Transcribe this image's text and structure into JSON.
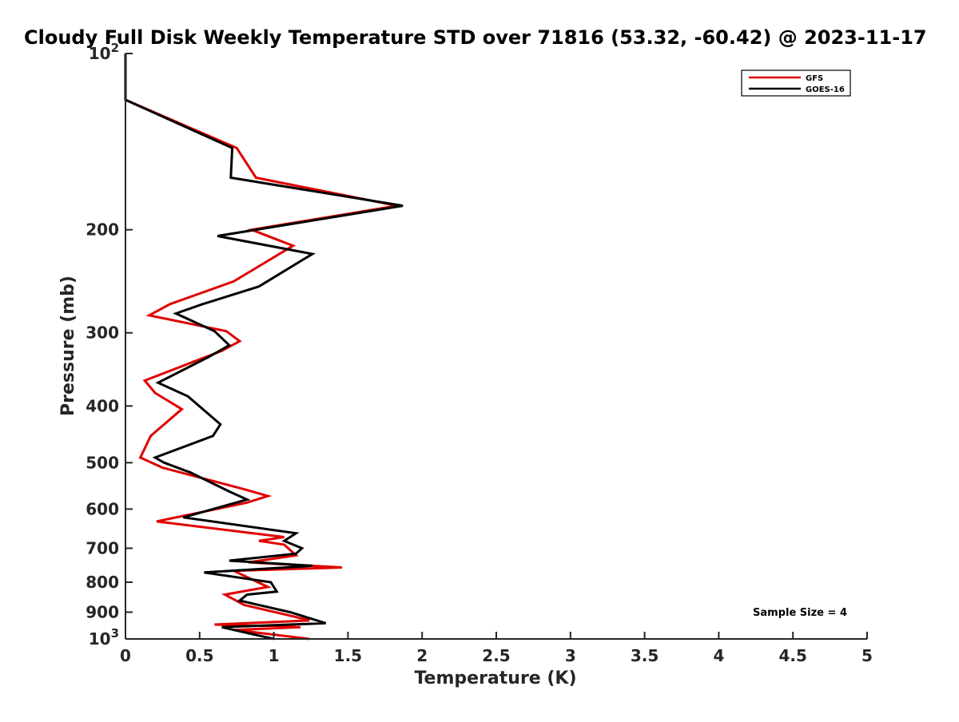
{
  "chart_data": {
    "type": "line",
    "title": "Cloudy Full Disk Weekly Temperature STD over 71816 (53.32, -60.42) @ 2023-11-17",
    "xlabel": "Temperature (K)",
    "ylabel": "Pressure (mb)",
    "xlim": [
      0,
      5
    ],
    "ylim": [
      1000,
      100
    ],
    "yscale": "log",
    "y_reversed": true,
    "grid": false,
    "legend_position": "top-right",
    "x_ticks": [
      0,
      0.5,
      1,
      1.5,
      2,
      2.5,
      3,
      3.5,
      4,
      4.5,
      5
    ],
    "x_tick_labels": [
      "0",
      "0.5",
      "1",
      "1.5",
      "2",
      "2.5",
      "3",
      "3.5",
      "4",
      "4.5",
      "5"
    ],
    "y_ticks": [
      100,
      200,
      300,
      400,
      500,
      600,
      700,
      800,
      900,
      1000
    ],
    "y_tick_labels": [
      "10^2",
      "200",
      "300",
      "400",
      "500",
      "600",
      "700",
      "800",
      "900",
      "10^3"
    ],
    "annotation": "Sample Size = 4",
    "series": [
      {
        "name": "GFS",
        "color": "#e00000",
        "x": [
          0,
          0,
          0,
          0.75,
          0.88,
          1.83,
          0.85,
          1.13,
          0.73,
          0.3,
          0.16,
          0.68,
          0.77,
          0.65,
          0.13,
          0.2,
          0.38,
          0.17,
          0.1,
          0.25,
          0.8,
          0.96,
          0.82,
          0.21,
          1.07,
          0.9,
          1.07,
          1.15,
          0.83,
          1.46,
          0.73,
          0.96,
          0.67,
          0.8,
          1.13,
          1.24,
          0.6,
          1.18,
          0.74,
          1.24
        ],
        "y": [
          100,
          110,
          120,
          145,
          163,
          182,
          200,
          213,
          245,
          268,
          280,
          298,
          310,
          322,
          362,
          380,
          405,
          450,
          490,
          510,
          555,
          570,
          585,
          630,
          670,
          680,
          690,
          720,
          740,
          755,
          765,
          815,
          840,
          875,
          915,
          930,
          945,
          955,
          965,
          1000
        ]
      },
      {
        "name": "GOES-16",
        "color": "#000000",
        "x": [
          0,
          0,
          0,
          0.72,
          0.71,
          1.87,
          0.62,
          1.26,
          0.9,
          0.52,
          0.34,
          0.6,
          0.7,
          0.56,
          0.22,
          0.42,
          0.64,
          0.59,
          0.2,
          0.26,
          0.44,
          0.7,
          0.82,
          0.39,
          1.15,
          1.07,
          1.19,
          1.15,
          0.7,
          1.26,
          0.53,
          0.98,
          1.02,
          0.82,
          0.77,
          1.11,
          1.35,
          0.65,
          1.0
        ],
        "y": [
          100,
          110,
          120,
          145,
          163,
          182,
          205,
          220,
          250,
          268,
          278,
          298,
          315,
          330,
          365,
          385,
          430,
          450,
          490,
          500,
          520,
          560,
          578,
          620,
          660,
          680,
          700,
          715,
          735,
          750,
          770,
          800,
          830,
          840,
          860,
          900,
          940,
          955,
          1000
        ]
      }
    ]
  }
}
